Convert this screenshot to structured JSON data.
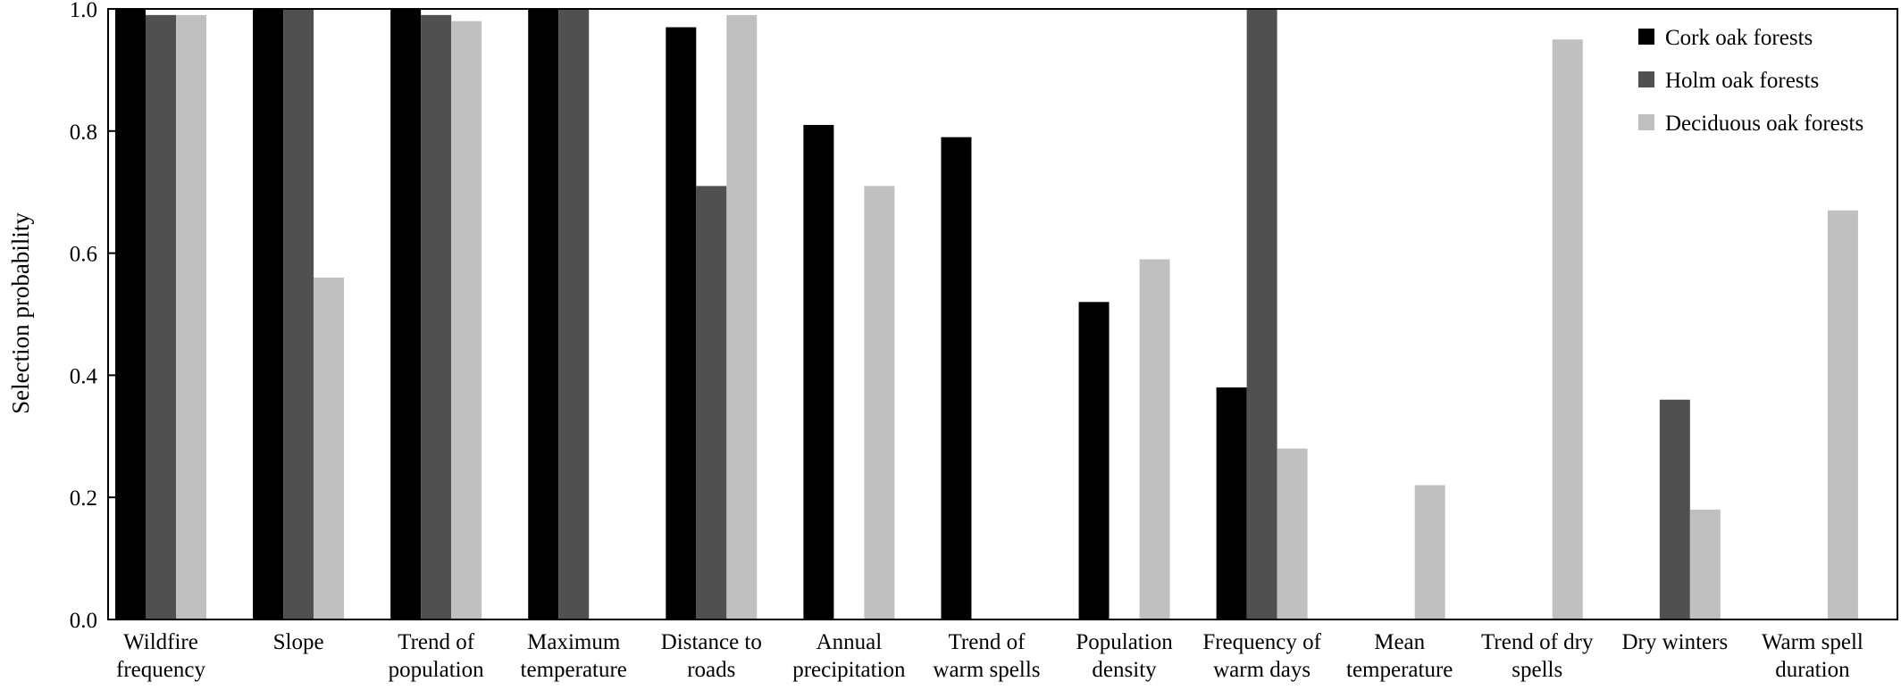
{
  "chart_data": {
    "type": "bar",
    "title": "",
    "xlabel": "",
    "ylabel": "Selection probability",
    "ylim": [
      0,
      1.0
    ],
    "yticks": [
      "0.0",
      "0.2",
      "0.4",
      "0.6",
      "0.8",
      "1.0"
    ],
    "grid": false,
    "legend_position": "top-right",
    "categories": [
      [
        "Wildfire",
        "frequency"
      ],
      [
        "Slope"
      ],
      [
        "Trend of",
        "population"
      ],
      [
        "Maximum",
        "temperature"
      ],
      [
        "Distance to",
        "roads"
      ],
      [
        "Annual",
        "precipitation"
      ],
      [
        "Trend of",
        "warm spells"
      ],
      [
        "Population",
        "density"
      ],
      [
        "Frequency of",
        "warm days"
      ],
      [
        "Mean",
        "temperature"
      ],
      [
        "Trend of dry",
        "spells"
      ],
      [
        "Dry winters"
      ],
      [
        "Warm spell",
        "duration"
      ]
    ],
    "series": [
      {
        "name": "Cork oak forests",
        "color": "#000000",
        "values": [
          1.0,
          1.0,
          1.0,
          1.0,
          0.97,
          0.81,
          0.79,
          0.52,
          0.38,
          0,
          0,
          0,
          0
        ]
      },
      {
        "name": "Holm oak forests",
        "color": "#505050",
        "values": [
          0.99,
          1.0,
          0.99,
          1.0,
          0.71,
          0,
          0,
          0,
          1.0,
          0,
          0,
          0.36,
          0
        ]
      },
      {
        "name": "Deciduous oak forests",
        "color": "#c0c0c0",
        "values": [
          0.99,
          0.56,
          0.98,
          0,
          0.99,
          0.71,
          0,
          0.59,
          0.28,
          0.22,
          0.95,
          0.18,
          0.67
        ]
      }
    ]
  }
}
